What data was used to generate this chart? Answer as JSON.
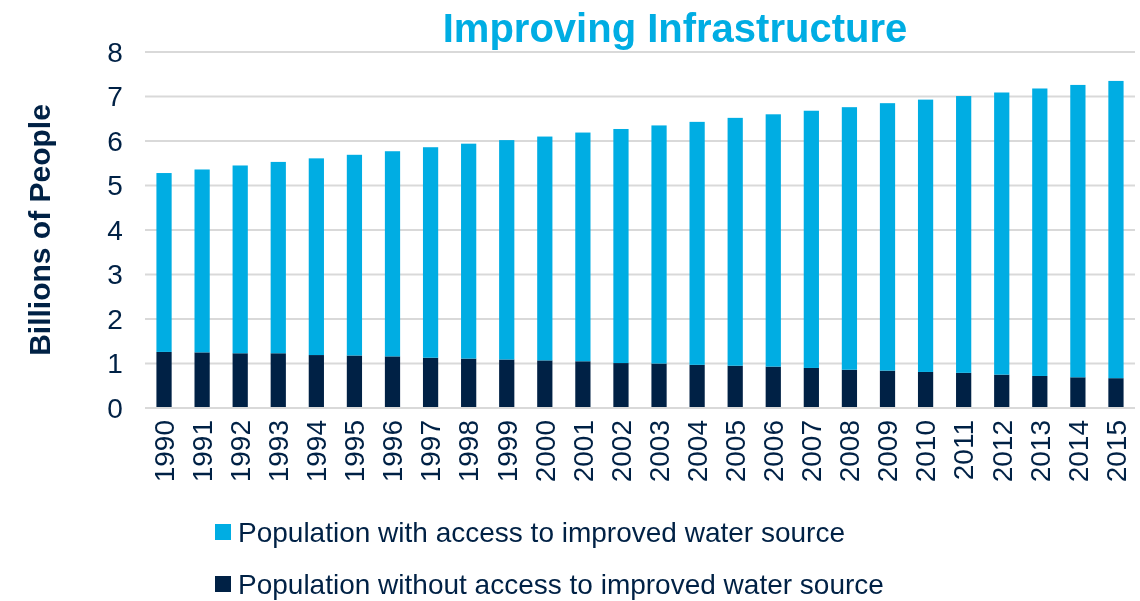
{
  "chart_data": {
    "type": "bar",
    "stacked": true,
    "title": "Improving Infrastructure",
    "ylabel": "Billions of People",
    "categories": [
      "1990",
      "1991",
      "1992",
      "1993",
      "1994",
      "1995",
      "1996",
      "1997",
      "1998",
      "1999",
      "2000",
      "2001",
      "2002",
      "2003",
      "2004",
      "2005",
      "2006",
      "2007",
      "2008",
      "2009",
      "2010",
      "2011",
      "2012",
      "2013",
      "2014",
      "2015"
    ],
    "series": [
      {
        "name": "Population without access to improved water source",
        "color": "#002145",
        "values": [
          1.26,
          1.25,
          1.23,
          1.23,
          1.19,
          1.18,
          1.16,
          1.13,
          1.11,
          1.09,
          1.07,
          1.05,
          1.01,
          1.0,
          0.97,
          0.95,
          0.93,
          0.9,
          0.86,
          0.84,
          0.81,
          0.79,
          0.75,
          0.72,
          0.69,
          0.67
        ]
      },
      {
        "name": "Population with access to improved water source",
        "color": "#00ade3",
        "values": [
          4.02,
          4.11,
          4.22,
          4.3,
          4.42,
          4.51,
          4.61,
          4.73,
          4.83,
          4.93,
          5.03,
          5.14,
          5.26,
          5.35,
          5.46,
          5.57,
          5.67,
          5.78,
          5.9,
          6.01,
          6.12,
          6.22,
          6.34,
          6.46,
          6.57,
          6.68
        ]
      }
    ],
    "ylim": [
      0,
      8
    ],
    "yticks": [
      0,
      1,
      2,
      3,
      4,
      5,
      6,
      7,
      8
    ],
    "grid": "y",
    "legend": "bottom"
  }
}
